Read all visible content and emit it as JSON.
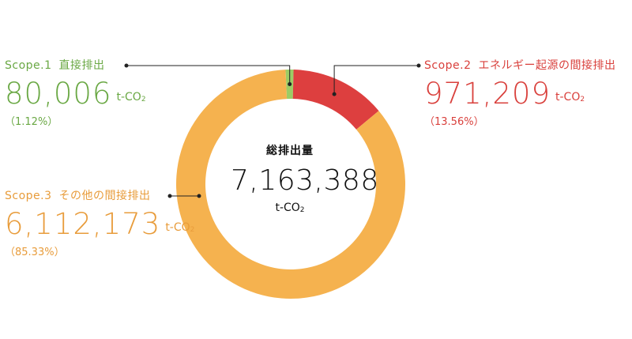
{
  "chart_data": {
    "type": "pie",
    "center": {
      "title": "総排出量",
      "value": "7,163,388",
      "unit_main": "t-CO",
      "unit_sub": "2"
    },
    "unit_main": "t-CO",
    "unit_sub": "2",
    "series": [
      {
        "name": "Scope.1",
        "description": "直接排出",
        "value": 80006,
        "value_label": "80,006",
        "percent": 1.12,
        "percent_label": "（1.12%）",
        "color": "#9ccc65"
      },
      {
        "name": "Scope.2",
        "description": "エネルギー起源の間接排出",
        "value": 971209,
        "value_label": "971,209",
        "percent": 13.56,
        "percent_label": "（13.56%）",
        "color": "#dd3f3f"
      },
      {
        "name": "Scope.3",
        "description": "その他の間接排出",
        "value": 6112173,
        "value_label": "6,112,173",
        "percent": 85.33,
        "percent_label": "（85.33%）",
        "color": "#f5b24f"
      }
    ]
  },
  "colors": {
    "scope1_text": "#6aa844",
    "scope2_text": "#d9403c",
    "scope3_text": "#e89c3b",
    "leader_line": "#222222"
  }
}
